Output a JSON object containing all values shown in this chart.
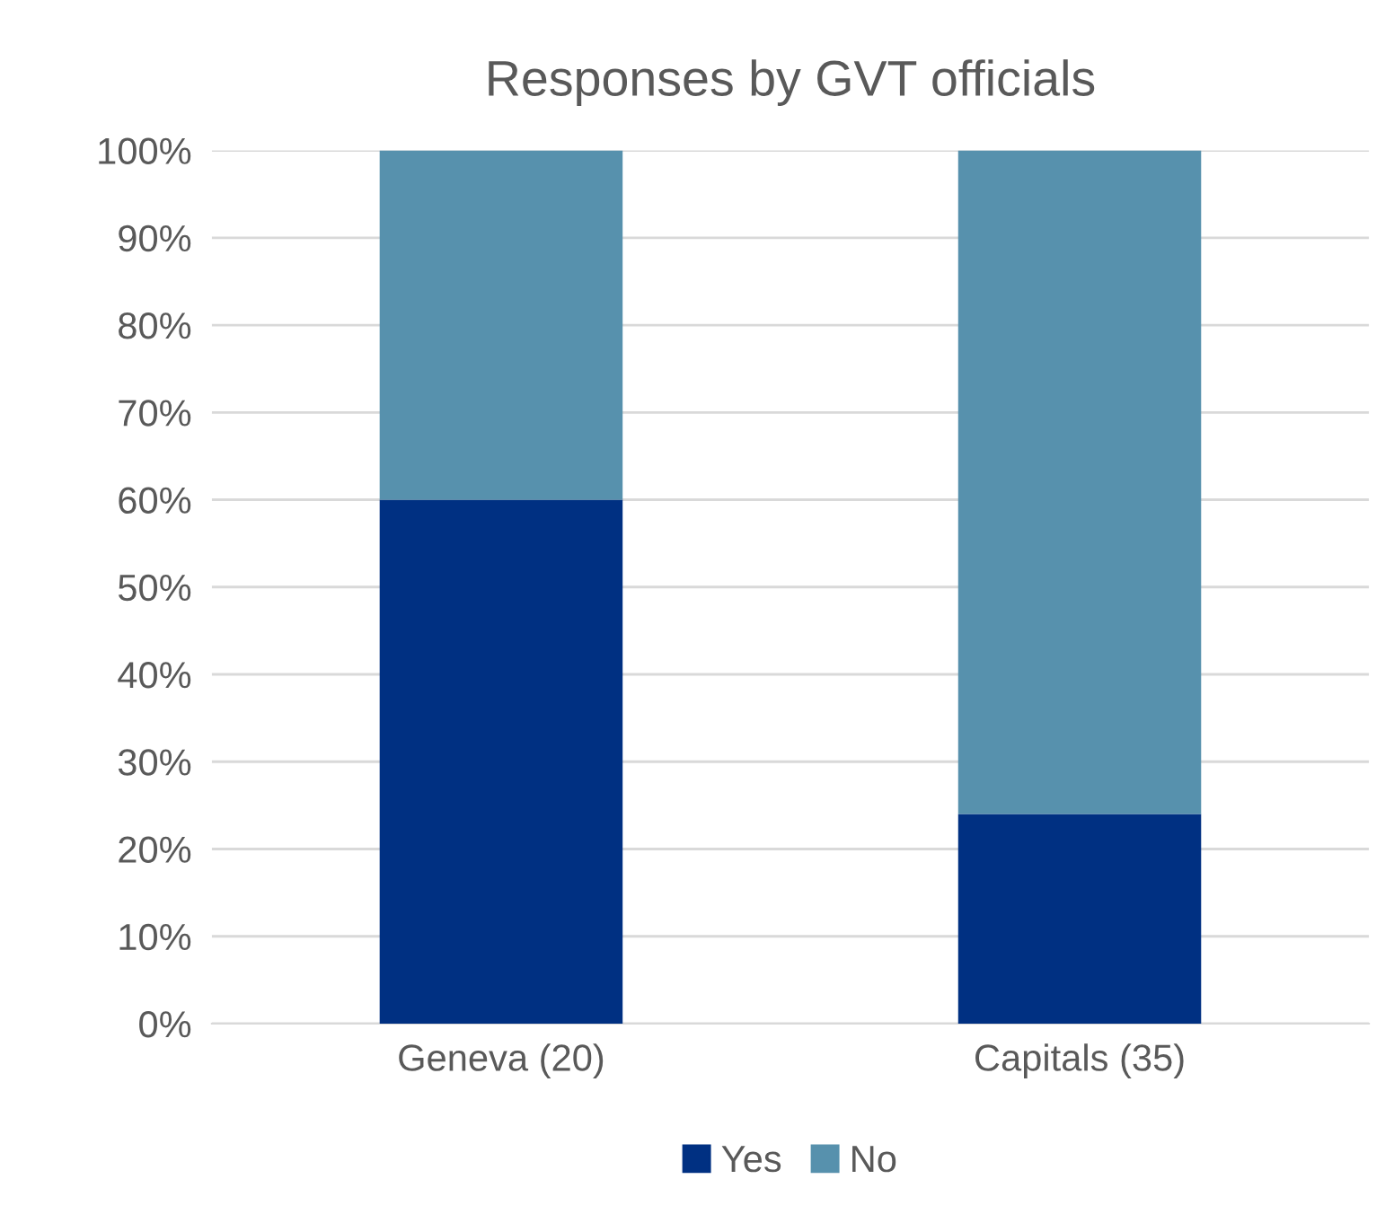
{
  "chart_data": {
    "type": "bar",
    "stacked": true,
    "title": "Responses by GVT officials",
    "categories": [
      "Geneva (20)",
      "Capitals (35)"
    ],
    "series": [
      {
        "name": "Yes",
        "color": "#003082",
        "values": [
          60,
          24
        ]
      },
      {
        "name": "No",
        "color": "#5791ad",
        "values": [
          40,
          76
        ]
      }
    ],
    "ylim": [
      0,
      100
    ],
    "yticks": [
      {
        "value": 0,
        "label": "0%"
      },
      {
        "value": 10,
        "label": "10%"
      },
      {
        "value": 20,
        "label": "20%"
      },
      {
        "value": 30,
        "label": "30%"
      },
      {
        "value": 40,
        "label": "40%"
      },
      {
        "value": 50,
        "label": "50%"
      },
      {
        "value": 60,
        "label": "60%"
      },
      {
        "value": 70,
        "label": "70%"
      },
      {
        "value": 80,
        "label": "80%"
      },
      {
        "value": 90,
        "label": "90%"
      },
      {
        "value": 100,
        "label": "100%"
      }
    ],
    "grid": "y",
    "legend": "bottom"
  }
}
